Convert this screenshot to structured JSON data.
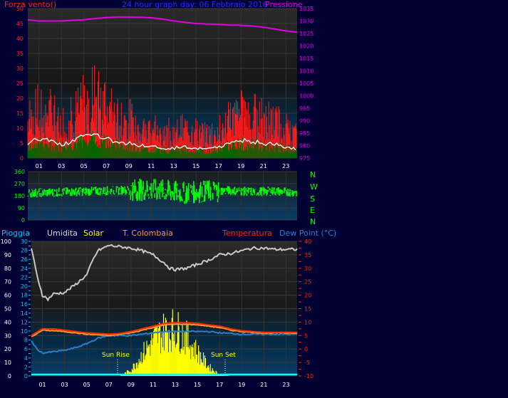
{
  "top": {
    "left_label": "Forza vento()",
    "title": "24 hour graph day: 06 Febbraio 2016",
    "right_label": "Pressione",
    "left_ticks": [
      "0",
      "5",
      "10",
      "15",
      "20",
      "25",
      "30",
      "35",
      "40",
      "45",
      "50"
    ],
    "right_ticks": [
      "975",
      "980",
      "985",
      "990",
      "995",
      "1000",
      "1005",
      "1010",
      "1015",
      "1020",
      "1025",
      "1030",
      "1035"
    ]
  },
  "direction": {
    "ticks": [
      "0",
      "90",
      "180",
      "270",
      "360"
    ],
    "compass": [
      "N",
      "W",
      "S",
      "E",
      "N"
    ]
  },
  "bottom": {
    "legend": {
      "pioggia": "Pioggia",
      "umidita": "Umidita",
      "solar": "Solar",
      "t_colombaia": "T. Colombaia",
      "temperatura": "Temperatura",
      "dew_point": "Dew Point (°C)"
    },
    "sun_rise": "Sun Rise",
    "sun_set": "Sun Set",
    "humidity_ticks": [
      "0",
      "10",
      "20",
      "30",
      "40",
      "50",
      "60",
      "70",
      "80",
      "90",
      "100"
    ],
    "rain_ticks": [
      "0",
      "2",
      "4",
      "6",
      "8",
      "10",
      "12",
      "14",
      "16",
      "18",
      "20",
      "22",
      "24",
      "26",
      "28",
      "30"
    ],
    "temp_ticks": [
      "-10",
      "-5",
      "0",
      "5",
      "10",
      "15",
      "20",
      "25",
      "30",
      "35",
      "40"
    ]
  },
  "hours": [
    "01",
    "03",
    "05",
    "07",
    "09",
    "11",
    "13",
    "15",
    "17",
    "19",
    "21",
    "23"
  ],
  "colors": {
    "background": "#000033",
    "plot_top": "#1a1a1a",
    "plot_bottom": "#08385c",
    "gust": "#ff1a1a",
    "avg_wind": "#006600",
    "wind_line": "#ffffff",
    "pressure": "#e400e4",
    "direction": "#00ff00",
    "humidity": "#c8c8c8",
    "solar": "#ffff00",
    "temperature": "#ff2a00",
    "t_colombaia": "#ff9933",
    "dew_point": "#2b7fc8",
    "rain": "#00ffff"
  },
  "chart_data": [
    {
      "type": "line",
      "title": "24 hour graph day: 06 Febbraio 2016",
      "x_unit": "hour",
      "ylim_left": [
        0,
        50
      ],
      "ylim_right": [
        975,
        1035
      ],
      "series": [
        {
          "name": "Forza vento()",
          "axis": "left",
          "x": [
            0,
            1,
            2,
            3,
            4,
            5,
            6,
            7,
            8,
            9,
            10,
            11,
            12,
            13,
            14,
            15,
            16,
            17,
            18,
            19,
            20,
            21,
            22,
            23,
            24
          ],
          "values": [
            12,
            15,
            14,
            11,
            13,
            17,
            20,
            15,
            13,
            12,
            10,
            9,
            8,
            8,
            9,
            8,
            7,
            9,
            12,
            14,
            13,
            12,
            11,
            9,
            7
          ]
        },
        {
          "name": "Pressione",
          "axis": "right",
          "x": [
            0,
            1,
            2,
            3,
            4,
            5,
            6,
            7,
            8,
            9,
            10,
            11,
            12,
            13,
            14,
            15,
            16,
            17,
            18,
            19,
            20,
            21,
            22,
            23,
            24
          ],
          "values": [
            1030.5,
            1030,
            1030,
            1030,
            1030.3,
            1030.5,
            1031,
            1031.4,
            1031.6,
            1031.6,
            1031.5,
            1031.3,
            1030.8,
            1030,
            1029.5,
            1029,
            1028.8,
            1028.6,
            1028.4,
            1028.3,
            1028,
            1027.5,
            1026.8,
            1026,
            1025.5
          ]
        }
      ]
    },
    {
      "type": "scatter",
      "ylim": [
        0,
        360
      ],
      "series": [
        {
          "name": "wind direction",
          "x": [
            0,
            2,
            4,
            6,
            8,
            10,
            12,
            14,
            16,
            18,
            20,
            22,
            24
          ],
          "values": [
            200,
            205,
            210,
            215,
            220,
            225,
            220,
            200,
            215,
            220,
            210,
            215,
            205
          ]
        }
      ]
    },
    {
      "type": "line",
      "ylim_left": [
        0,
        100
      ],
      "ylim_right": [
        -10,
        40
      ],
      "series": [
        {
          "name": "Umidita",
          "axis": "humidity",
          "x": [
            0,
            0.5,
            1,
            1.5,
            2,
            3,
            4,
            5,
            5.5,
            6,
            7,
            8,
            9,
            10,
            11,
            12,
            12.5,
            13,
            14,
            15,
            16,
            17,
            18,
            19,
            20,
            21,
            22,
            23,
            24
          ],
          "values": [
            95,
            75,
            60,
            57,
            61,
            62,
            68,
            75,
            85,
            93,
            97,
            96,
            95,
            93,
            90,
            84,
            80,
            79,
            80,
            83,
            86,
            90,
            91,
            93,
            95,
            95,
            94,
            94,
            94
          ]
        },
        {
          "name": "Temperatura",
          "axis": "temp",
          "x": [
            0,
            1,
            2,
            3,
            4,
            5,
            6,
            7,
            8,
            9,
            10,
            11,
            12,
            13,
            14,
            15,
            16,
            17,
            18,
            19,
            20,
            21,
            22,
            23,
            24
          ],
          "values": [
            5,
            7.5,
            7.5,
            7,
            6.5,
            6,
            5.8,
            5.5,
            5.8,
            6.5,
            7.5,
            8.5,
            9.5,
            9.8,
            9.8,
            9.5,
            9,
            8.5,
            7.5,
            6.8,
            6.5,
            6.2,
            6.2,
            6.2,
            6.2
          ]
        },
        {
          "name": "T. Colombaia",
          "axis": "temp",
          "x": [
            0,
            1,
            2,
            3,
            4,
            5,
            6,
            7,
            8,
            9,
            10,
            11,
            12,
            13,
            14,
            15,
            16,
            17,
            18,
            19,
            20,
            21,
            22,
            23,
            24
          ],
          "values": [
            4.5,
            7,
            6.8,
            6.5,
            6,
            5.5,
            5.3,
            5,
            5.5,
            6,
            7,
            8,
            9,
            9.2,
            9.2,
            9,
            8.5,
            8,
            7,
            6.5,
            6.2,
            6,
            6,
            6,
            6
          ]
        },
        {
          "name": "Dew Point (°C)",
          "axis": "temp",
          "x": [
            0,
            0.5,
            1,
            2,
            3,
            4,
            5,
            6,
            7,
            8,
            9,
            10,
            11,
            12,
            13,
            14,
            15,
            16,
            17,
            18,
            19,
            20,
            21,
            22,
            23,
            24
          ],
          "values": [
            3,
            0,
            -1.5,
            -1,
            -0.5,
            0.5,
            2,
            4,
            5,
            5,
            5,
            5.5,
            6,
            6.5,
            6.5,
            6.5,
            6.5,
            6.5,
            6,
            5.8,
            5.5,
            5.5,
            5.5,
            5.5,
            5.5,
            5.5
          ]
        },
        {
          "name": "Solar",
          "axis": "solar",
          "x": [
            7,
            8,
            9,
            10,
            11,
            12,
            13,
            14,
            15,
            16,
            17,
            18
          ],
          "values": [
            0,
            0,
            5,
            18,
            30,
            38,
            40,
            32,
            20,
            8,
            1,
            0
          ]
        },
        {
          "name": "Pioggia",
          "axis": "rain",
          "x": [
            0,
            24
          ],
          "values": [
            0,
            0
          ]
        }
      ]
    }
  ]
}
